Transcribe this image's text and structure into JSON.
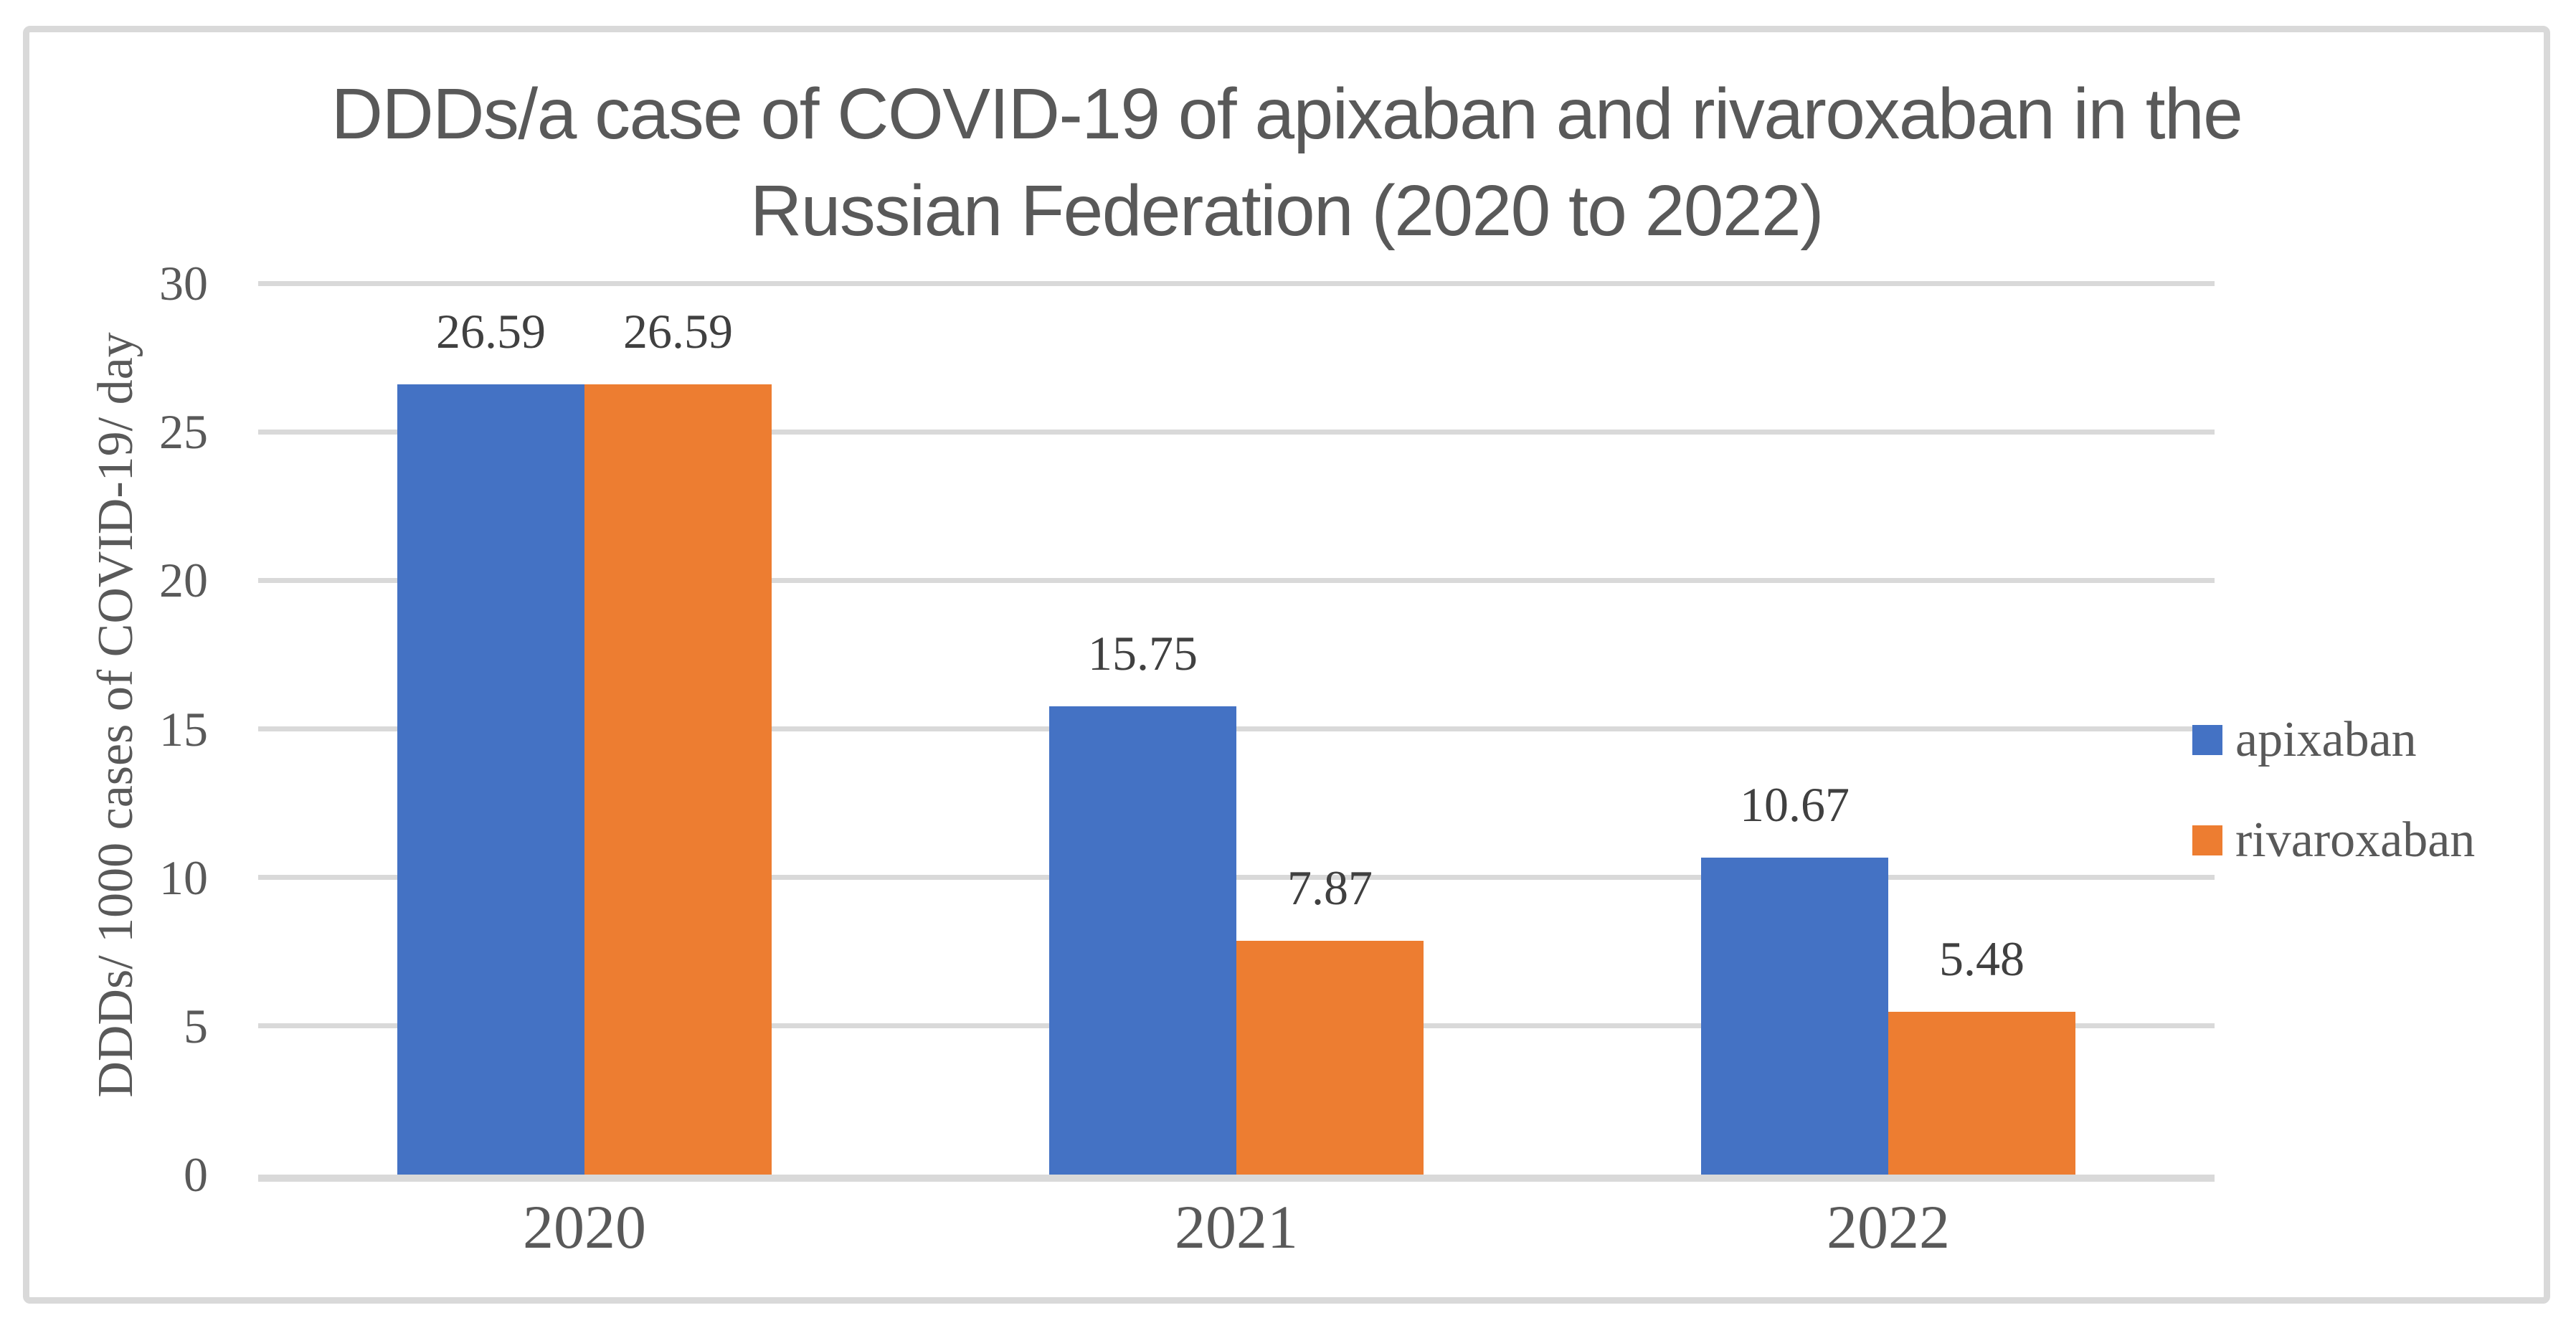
{
  "chart_data": {
    "type": "bar",
    "title": "DDDs/a case of COVID-19 of apixaban and rivaroxaban in the Russian Federation (2020 to 2022)",
    "title_lines": [
      "DDDs/a case of COVID-19 of apixaban and rivaroxaban in the",
      "Russian Federation (2020 to 2022)"
    ],
    "xlabel": "",
    "ylabel": "DDDs/ 1000 cases of COVID-19/ day",
    "categories": [
      "2020",
      "2021",
      "2022"
    ],
    "series": [
      {
        "name": "apixaban",
        "color": "#4472C4",
        "values": [
          26.59,
          15.75,
          10.67
        ]
      },
      {
        "name": "rivaroxaban",
        "color": "#ED7D31",
        "values": [
          26.59,
          7.87,
          5.48
        ]
      }
    ],
    "data_label_decimals": 2,
    "ylim": [
      0,
      30
    ],
    "ytick_step": 5,
    "yticks": [
      "0",
      "5",
      "10",
      "15",
      "20",
      "25",
      "30"
    ],
    "grid": true,
    "legend_position": "right"
  },
  "colors": {
    "grid": "#D9D9D9",
    "frame_border": "#D9D9D9",
    "background": "#FFFFFF",
    "title_text": "#595959",
    "axis_text": "#595959",
    "data_label_text": "#404040",
    "series_apixaban": "#4472C4",
    "series_rivaroxaban": "#ED7D31"
  }
}
